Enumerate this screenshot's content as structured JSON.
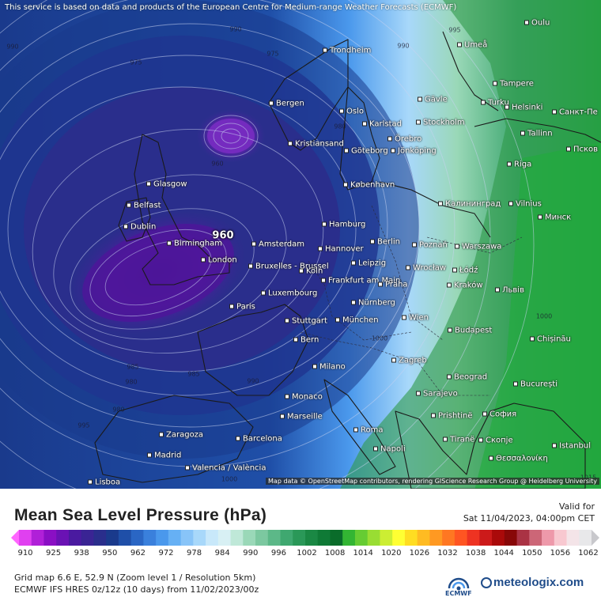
{
  "notice": "This service is based on data and products of the European Centre for Medium-range Weather Forecasts (ECMWF)",
  "map_attribution": "Map data © OpenStreetMap contributors, rendering GIScience Research Group @ Heidelberg University",
  "title": "Mean Sea Level Pressure (hPa)",
  "valid_label": "Valid for",
  "valid_datetime": "Sat 11/04/2023, 04:00pm CET",
  "grid_info": "Grid map 6.6 E, 52.9 N (Zoom level 1 / Resolution 5km)",
  "model_info": "ECMWF IFS HRES 0z/12z (10 days) from 11/02/2023/00z",
  "logos": {
    "ecmwf": "ECMWF",
    "meteologix": "meteologix.com",
    "ecmwf_icon": "ecmwf-logo-icon",
    "meteologix_icon": "meteologix-logo-icon"
  },
  "colorbar": {
    "ticks": [
      "910",
      "925",
      "938",
      "950",
      "962",
      "972",
      "978",
      "984",
      "990",
      "996",
      "1002",
      "1008",
      "1014",
      "1020",
      "1026",
      "1032",
      "1038",
      "1044",
      "1050",
      "1056",
      "1062"
    ],
    "colors": [
      "#ff66ff",
      "#e040f0",
      "#b020d8",
      "#8a0fc4",
      "#6a12b4",
      "#4a1aa0",
      "#3a2494",
      "#2a2e8c",
      "#1a3a8c",
      "#1f4fa8",
      "#2a66c4",
      "#3a80dc",
      "#4a98ec",
      "#66b0f4",
      "#88c4f8",
      "#a8d8fa",
      "#c8e8fa",
      "#d8f0f4",
      "#bfe8d8",
      "#9ad8b8",
      "#7cc8a0",
      "#5cb888",
      "#3fa870",
      "#2a9858",
      "#1a8844",
      "#0f7a36",
      "#0a6c2a",
      "#33b533",
      "#66cc33",
      "#99dd33",
      "#ccee33",
      "#ffff33",
      "#ffdd22",
      "#ffbb22",
      "#ff9922",
      "#ff7722",
      "#ff5522",
      "#ee3322",
      "#cc1a1a",
      "#aa0a0a",
      "#880808",
      "#aa3344",
      "#cc6677",
      "#ee99aa",
      "#f8c8d0",
      "#f4e4e8",
      "#e8e8ea",
      "#c8c8cc"
    ]
  },
  "pressure_low_labels": [
    {
      "id": "low-center-south",
      "value": "960"
    },
    {
      "id": "low-center-north",
      "value": "960"
    }
  ],
  "isobar_labels": [
    "990",
    "975",
    "975",
    "990",
    "980",
    "960",
    "995",
    "985",
    "985",
    "990",
    "980",
    "990",
    "1000",
    "1000",
    "1015",
    "980",
    "995",
    "1000"
  ],
  "cities": [
    {
      "name": "Oulu"
    },
    {
      "name": "Umeå"
    },
    {
      "name": "Trondheim"
    },
    {
      "name": "Bergen"
    },
    {
      "name": "Oslo"
    },
    {
      "name": "Gävle"
    },
    {
      "name": "Tampere"
    },
    {
      "name": "Turku"
    },
    {
      "name": "Helsinki"
    },
    {
      "name": "Санкт-Пе"
    },
    {
      "name": "Karlstad"
    },
    {
      "name": "Stockholm"
    },
    {
      "name": "Örebro"
    },
    {
      "name": "Tallinn"
    },
    {
      "name": "Псков"
    },
    {
      "name": "Kristiansand"
    },
    {
      "name": "Göteborg"
    },
    {
      "name": "Jönköping"
    },
    {
      "name": "Riga"
    },
    {
      "name": "Glasgow"
    },
    {
      "name": "København"
    },
    {
      "name": "Belfast"
    },
    {
      "name": "Калининград"
    },
    {
      "name": "Vilnius"
    },
    {
      "name": "Минск"
    },
    {
      "name": "Dublin"
    },
    {
      "name": "Hamburg"
    },
    {
      "name": "Birmingham"
    },
    {
      "name": "Amsterdam"
    },
    {
      "name": "Berlin"
    },
    {
      "name": "Poznań"
    },
    {
      "name": "Warszawa"
    },
    {
      "name": "London"
    },
    {
      "name": "Hannover"
    },
    {
      "name": "Bruxelles - Brussel"
    },
    {
      "name": "Köln"
    },
    {
      "name": "Leipzig"
    },
    {
      "name": "Wrocław"
    },
    {
      "name": "Łódź"
    },
    {
      "name": "Frankfurt am Main"
    },
    {
      "name": "Praha"
    },
    {
      "name": "Kraków"
    },
    {
      "name": "Львів"
    },
    {
      "name": "Luxembourg"
    },
    {
      "name": "Paris"
    },
    {
      "name": "Nürnberg"
    },
    {
      "name": "Stuttgart"
    },
    {
      "name": "München"
    },
    {
      "name": "Wien"
    },
    {
      "name": "Budapest"
    },
    {
      "name": "Bern"
    },
    {
      "name": "Chișinău"
    },
    {
      "name": "Milano"
    },
    {
      "name": "Zagreb"
    },
    {
      "name": "Beograd"
    },
    {
      "name": "București"
    },
    {
      "name": "Sarajevo"
    },
    {
      "name": "Monaco"
    },
    {
      "name": "Marseille"
    },
    {
      "name": "Prishtinë"
    },
    {
      "name": "София"
    },
    {
      "name": "Roma"
    },
    {
      "name": "Tiranë"
    },
    {
      "name": "Скопје"
    },
    {
      "name": "Zaragoza"
    },
    {
      "name": "Barcelona"
    },
    {
      "name": "Napoli"
    },
    {
      "name": "Istanbul"
    },
    {
      "name": "Madrid"
    },
    {
      "name": "Valencia / València"
    },
    {
      "name": "Θεσσαλονίκη"
    },
    {
      "name": "Lisboa"
    }
  ],
  "colors": {
    "map_deep": "#1a2a80",
    "map_low": "#5a1a9e",
    "land_green": "#2a9a3a",
    "brand_blue": "#1f4c8a"
  }
}
